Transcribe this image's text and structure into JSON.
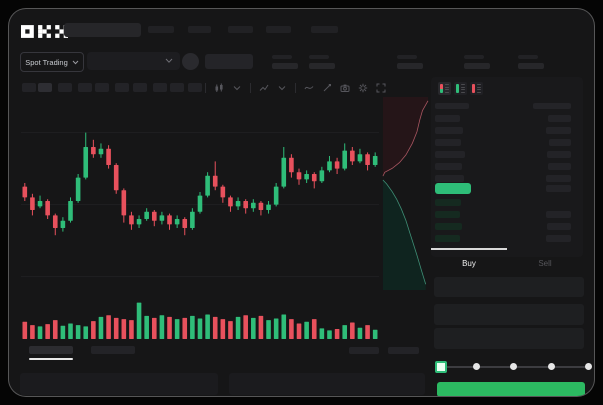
{
  "colors": {
    "background": "#050505",
    "window_bg": "#161617",
    "panel_bg": "#19191b",
    "skeleton": "#232327",
    "green": "#2fbd79",
    "red": "#e8515d",
    "buy_button_green": "#2cb961",
    "price_highlight_green": "#2ebd78",
    "depth_ask_fill": "#251518",
    "depth_ask_line": "#a85560",
    "depth_bid_fill": "#0f241f",
    "depth_bid_line": "#3e8e75",
    "gridline": "#1f1f22"
  },
  "header": {
    "logo": "OKX",
    "nav_placeholder_count": 5
  },
  "market_bar": {
    "market_selector_label": "Spot Trading",
    "stat_group_count": 5
  },
  "chart_toolbar": {
    "timeframe_button_count": 10,
    "active_timeframe_index": 1,
    "items": [
      "divider",
      "candle-type-icon",
      "chevron-down-icon",
      "divider",
      "chart-style-icon",
      "chevron-down-icon",
      "divider",
      "indicators-icon",
      "draw-icon",
      "screenshot-camera-icon",
      "settings-gear-icon",
      "fullscreen-icon"
    ]
  },
  "chart_data": {
    "type": "candlestick",
    "title": "",
    "axes_visible": false,
    "units": "relative 0-100 price scale; no axis tick labels are rendered in the UI",
    "gridline_prices": [
      88,
      48,
      8
    ],
    "candles_ohlc": [
      [
        58,
        52,
        60,
        50
      ],
      [
        52,
        45,
        54,
        42
      ],
      [
        47,
        50,
        53,
        46
      ],
      [
        50,
        42,
        51,
        40
      ],
      [
        42,
        35,
        43,
        31
      ],
      [
        35,
        39,
        41,
        33
      ],
      [
        39,
        50,
        52,
        38
      ],
      [
        50,
        63,
        65,
        49
      ],
      [
        63,
        80,
        88,
        62
      ],
      [
        80,
        76,
        84,
        74
      ],
      [
        76,
        79,
        82,
        74
      ],
      [
        79,
        70,
        81,
        68
      ],
      [
        70,
        56,
        71,
        54
      ],
      [
        56,
        42,
        57,
        38
      ],
      [
        42,
        37,
        44,
        34
      ],
      [
        37,
        40,
        42,
        35
      ],
      [
        40,
        44,
        46,
        39
      ],
      [
        44,
        39,
        45,
        36
      ],
      [
        39,
        42,
        44,
        37
      ],
      [
        42,
        37,
        43,
        34
      ],
      [
        37,
        40,
        42,
        35
      ],
      [
        40,
        35,
        41,
        31
      ],
      [
        35,
        44,
        46,
        34
      ],
      [
        44,
        53,
        55,
        43
      ],
      [
        53,
        64,
        66,
        52
      ],
      [
        64,
        58,
        72,
        56
      ],
      [
        58,
        52,
        59,
        49
      ],
      [
        52,
        47,
        53,
        44
      ],
      [
        47,
        50,
        52,
        45
      ],
      [
        50,
        46,
        51,
        43
      ],
      [
        46,
        49,
        51,
        44
      ],
      [
        49,
        45,
        50,
        42
      ],
      [
        45,
        48,
        50,
        43
      ],
      [
        48,
        58,
        60,
        47
      ],
      [
        58,
        74,
        80,
        57
      ],
      [
        74,
        66,
        76,
        63
      ],
      [
        66,
        62,
        68,
        59
      ],
      [
        62,
        65,
        67,
        60
      ],
      [
        65,
        61,
        66,
        57
      ],
      [
        61,
        67,
        69,
        60
      ],
      [
        67,
        72,
        75,
        66
      ],
      [
        72,
        68,
        74,
        65
      ],
      [
        68,
        78,
        82,
        67
      ],
      [
        78,
        72,
        80,
        70
      ],
      [
        72,
        76,
        79,
        71
      ],
      [
        76,
        70,
        77,
        67
      ],
      [
        70,
        75,
        77,
        69
      ]
    ],
    "volumes": [
      40,
      30,
      26,
      33,
      45,
      28,
      35,
      30,
      26,
      42,
      55,
      60,
      52,
      48,
      45,
      98,
      58,
      52,
      60,
      55,
      48,
      52,
      58,
      50,
      62,
      55,
      48,
      42,
      55,
      60,
      52,
      58,
      45,
      50,
      62,
      48,
      35,
      40,
      48,
      20,
      14,
      18,
      30,
      38,
      22,
      30,
      16
    ],
    "depth": {
      "asks": [
        [
          1.0,
          0.02
        ],
        [
          0.88,
          0.07
        ],
        [
          0.82,
          0.12
        ],
        [
          0.76,
          0.18
        ],
        [
          0.66,
          0.24
        ],
        [
          0.52,
          0.3
        ],
        [
          0.38,
          0.34
        ],
        [
          0.22,
          0.37
        ],
        [
          0.06,
          0.39
        ],
        [
          0.02,
          0.41
        ]
      ],
      "bids": [
        [
          0.02,
          0.43
        ],
        [
          0.1,
          0.45
        ],
        [
          0.22,
          0.49
        ],
        [
          0.32,
          0.53
        ],
        [
          0.42,
          0.58
        ],
        [
          0.52,
          0.64
        ],
        [
          0.6,
          0.7
        ],
        [
          0.68,
          0.76
        ],
        [
          0.76,
          0.82
        ],
        [
          0.86,
          0.9
        ],
        [
          0.95,
          0.97
        ]
      ]
    }
  },
  "orderbook": {
    "view_icons": [
      {
        "name": "book-split-view-icon",
        "selected": true,
        "top": "#e8515d",
        "bottom": "#2fbd79"
      },
      {
        "name": "book-bids-view-icon",
        "selected": false,
        "top": "#2fbd79",
        "bottom": "#2fbd79"
      },
      {
        "name": "book-asks-view-icon",
        "selected": false,
        "top": "#e8515d",
        "bottom": "#e8515d"
      }
    ],
    "asks": {
      "rows": 6,
      "price_bar_widths": [
        25,
        28,
        26,
        30,
        27,
        29
      ],
      "amount_bar_widths": [
        23,
        25,
        22,
        24,
        23,
        25
      ]
    },
    "last_price_row": {
      "highlight": true,
      "amount_bar_width": 25
    },
    "bids": {
      "rows": 4,
      "price_bar_widths": [
        26,
        25,
        27,
        25
      ],
      "amount_bar_widths": [
        0,
        25,
        24,
        25
      ]
    }
  },
  "trade_panel": {
    "tabs": [
      {
        "label": "Buy",
        "active": true
      },
      {
        "label": "Sell",
        "active": false
      }
    ],
    "field_count": 3,
    "slider": {
      "stop_count": 5,
      "selected_stop_index": 0
    },
    "submit_button_label": ""
  },
  "bottom_bar": {
    "tab_count": 2,
    "active_tab_index": 0,
    "right_link_count": 2,
    "panel_count": 2
  }
}
